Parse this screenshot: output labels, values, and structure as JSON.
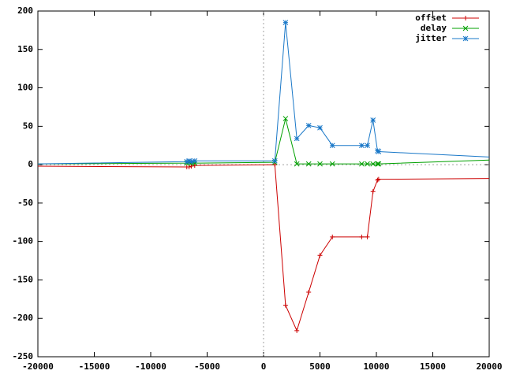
{
  "chart_data": {
    "type": "line",
    "x": [
      -20000,
      -6800,
      -6600,
      -6400,
      -6100,
      1000,
      1950,
      2950,
      4000,
      5000,
      6100,
      8700,
      9200,
      9700,
      10100,
      10200,
      20000
    ],
    "series": [
      {
        "name": "offset",
        "color": "#cc0000",
        "marker": "plus",
        "values": [
          -2,
          -3,
          -3,
          -2,
          -1,
          0,
          -183,
          -216,
          -166,
          -118,
          -94,
          -94,
          -94,
          -35,
          -20,
          -19,
          -18
        ]
      },
      {
        "name": "delay",
        "color": "#00a000",
        "marker": "cross",
        "values": [
          1,
          2,
          3,
          2,
          2,
          3,
          60,
          1,
          1,
          1,
          1,
          1,
          1,
          1,
          1,
          1,
          6
        ]
      },
      {
        "name": "jitter",
        "color": "#1a78c8",
        "marker": "star",
        "values": [
          1,
          4,
          5,
          4,
          5,
          5,
          185,
          34,
          51,
          48,
          25,
          25,
          25,
          58,
          18,
          17,
          10
        ]
      }
    ],
    "xlim": [
      -20000,
      20000
    ],
    "ylim": [
      -250,
      200
    ],
    "xticks": [
      -20000,
      -15000,
      -10000,
      -5000,
      0,
      5000,
      10000,
      15000,
      20000
    ],
    "yticks": [
      -250,
      -200,
      -150,
      -100,
      -50,
      0,
      50,
      100,
      150,
      200
    ],
    "zeroaxis": true,
    "legend": "top-right"
  }
}
